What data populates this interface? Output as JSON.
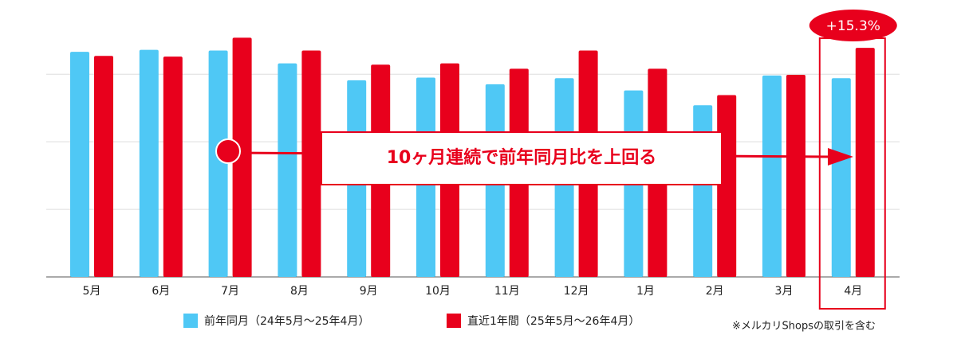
{
  "chart_data": {
    "type": "bar",
    "categories": [
      "5月",
      "6月",
      "7月",
      "8月",
      "9月",
      "10月",
      "11月",
      "12月",
      "1月",
      "2月",
      "3月",
      "4月"
    ],
    "series": [
      {
        "name": "前年同月（24年5月〜25年4月）",
        "color": "#4fc8f5",
        "values": [
          3.33,
          3.36,
          3.35,
          3.16,
          2.91,
          2.95,
          2.85,
          2.94,
          2.76,
          2.54,
          2.98,
          2.94
        ]
      },
      {
        "name": "直近1年間（25年5月〜26年4月）",
        "color": "#e8001c",
        "values": [
          3.27,
          3.26,
          3.54,
          3.35,
          3.14,
          3.16,
          3.08,
          3.35,
          3.08,
          2.69,
          2.99,
          3.39
        ]
      }
    ],
    "ylim": [
      0,
      3.85
    ],
    "yticks": [
      0,
      1,
      2,
      3
    ],
    "grid": true,
    "callout": "10ヶ月連続で前年同月比を上回る",
    "highlight_label": "+15.3%",
    "note": "※メルカリShopsの取引を含む"
  }
}
